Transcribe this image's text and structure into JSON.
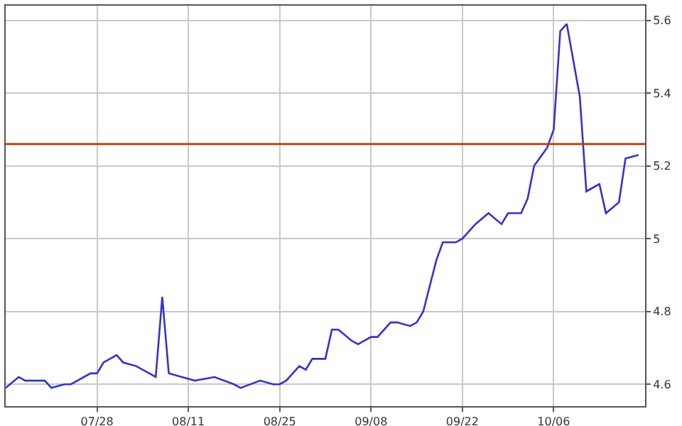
{
  "chart_data": {
    "type": "line",
    "x": [
      "--07-14",
      "--07-16",
      "--07-17",
      "--07-20",
      "--07-21",
      "--07-23",
      "--07-24",
      "--07-27",
      "--07-28",
      "--07-29",
      "--07-31",
      "--08-01",
      "--08-03",
      "--08-06",
      "--08-07",
      "--08-08",
      "--08-10",
      "--08-12",
      "--08-15",
      "--08-18",
      "--08-19",
      "--08-22",
      "--08-24",
      "--08-25",
      "--08-26",
      "--08-28",
      "--08-29",
      "--08-30",
      "--09-01",
      "--09-02",
      "--09-03",
      "--09-05",
      "--09-06",
      "--09-08",
      "--09-09",
      "--09-11",
      "--09-12",
      "--09-14",
      "--09-15",
      "--09-16",
      "--09-18",
      "--09-19",
      "--09-21",
      "--09-22",
      "--09-24",
      "--09-26",
      "--09-28",
      "--09-29",
      "--10-01",
      "--10-02",
      "--10-03",
      "--10-05",
      "--10-06",
      "--10-07",
      "--10-08",
      "--10-10",
      "--10-11",
      "--10-13",
      "--10-14",
      "--10-16",
      "--10-17",
      "--10-19"
    ],
    "series": [
      {
        "color": "#3333cc",
        "values": [
          4.59,
          4.62,
          4.61,
          4.61,
          4.59,
          4.6,
          4.6,
          4.63,
          4.63,
          4.66,
          4.68,
          4.66,
          4.65,
          4.62,
          4.84,
          4.63,
          4.62,
          4.61,
          4.62,
          4.6,
          4.59,
          4.61,
          4.6,
          4.6,
          4.61,
          4.65,
          4.64,
          4.67,
          4.67,
          4.75,
          4.75,
          4.72,
          4.71,
          4.73,
          4.73,
          4.77,
          4.77,
          4.76,
          4.77,
          4.8,
          4.94,
          4.99,
          4.99,
          5.0,
          5.04,
          5.07,
          5.04,
          5.07,
          5.07,
          5.11,
          5.2,
          5.25,
          5.3,
          5.57,
          5.59,
          5.39,
          5.13,
          5.15,
          5.07,
          5.1,
          5.22,
          5.23
        ]
      }
    ],
    "xlim": [
      "--07-14",
      "--10-20"
    ],
    "xticks": [
      {
        "value": "--07-28",
        "label": "07/28"
      },
      {
        "value": "--08-11",
        "label": "08/11"
      },
      {
        "value": "--08-25",
        "label": "08/25"
      },
      {
        "value": "--09-08",
        "label": "09/08"
      },
      {
        "value": "--09-22",
        "label": "09/22"
      },
      {
        "value": "--10-06",
        "label": "10/06"
      }
    ],
    "ylim": [
      4.54,
      5.64
    ],
    "yticks": [
      4.6,
      4.8,
      {
        "value": 5,
        "label": "5"
      },
      5.2,
      5.4,
      5.6
    ],
    "ref_lines": [
      {
        "axis": "y",
        "value": 5.26,
        "color": "#cc3300"
      }
    ],
    "grid": true,
    "marker": "none",
    "line_style": "solid"
  }
}
